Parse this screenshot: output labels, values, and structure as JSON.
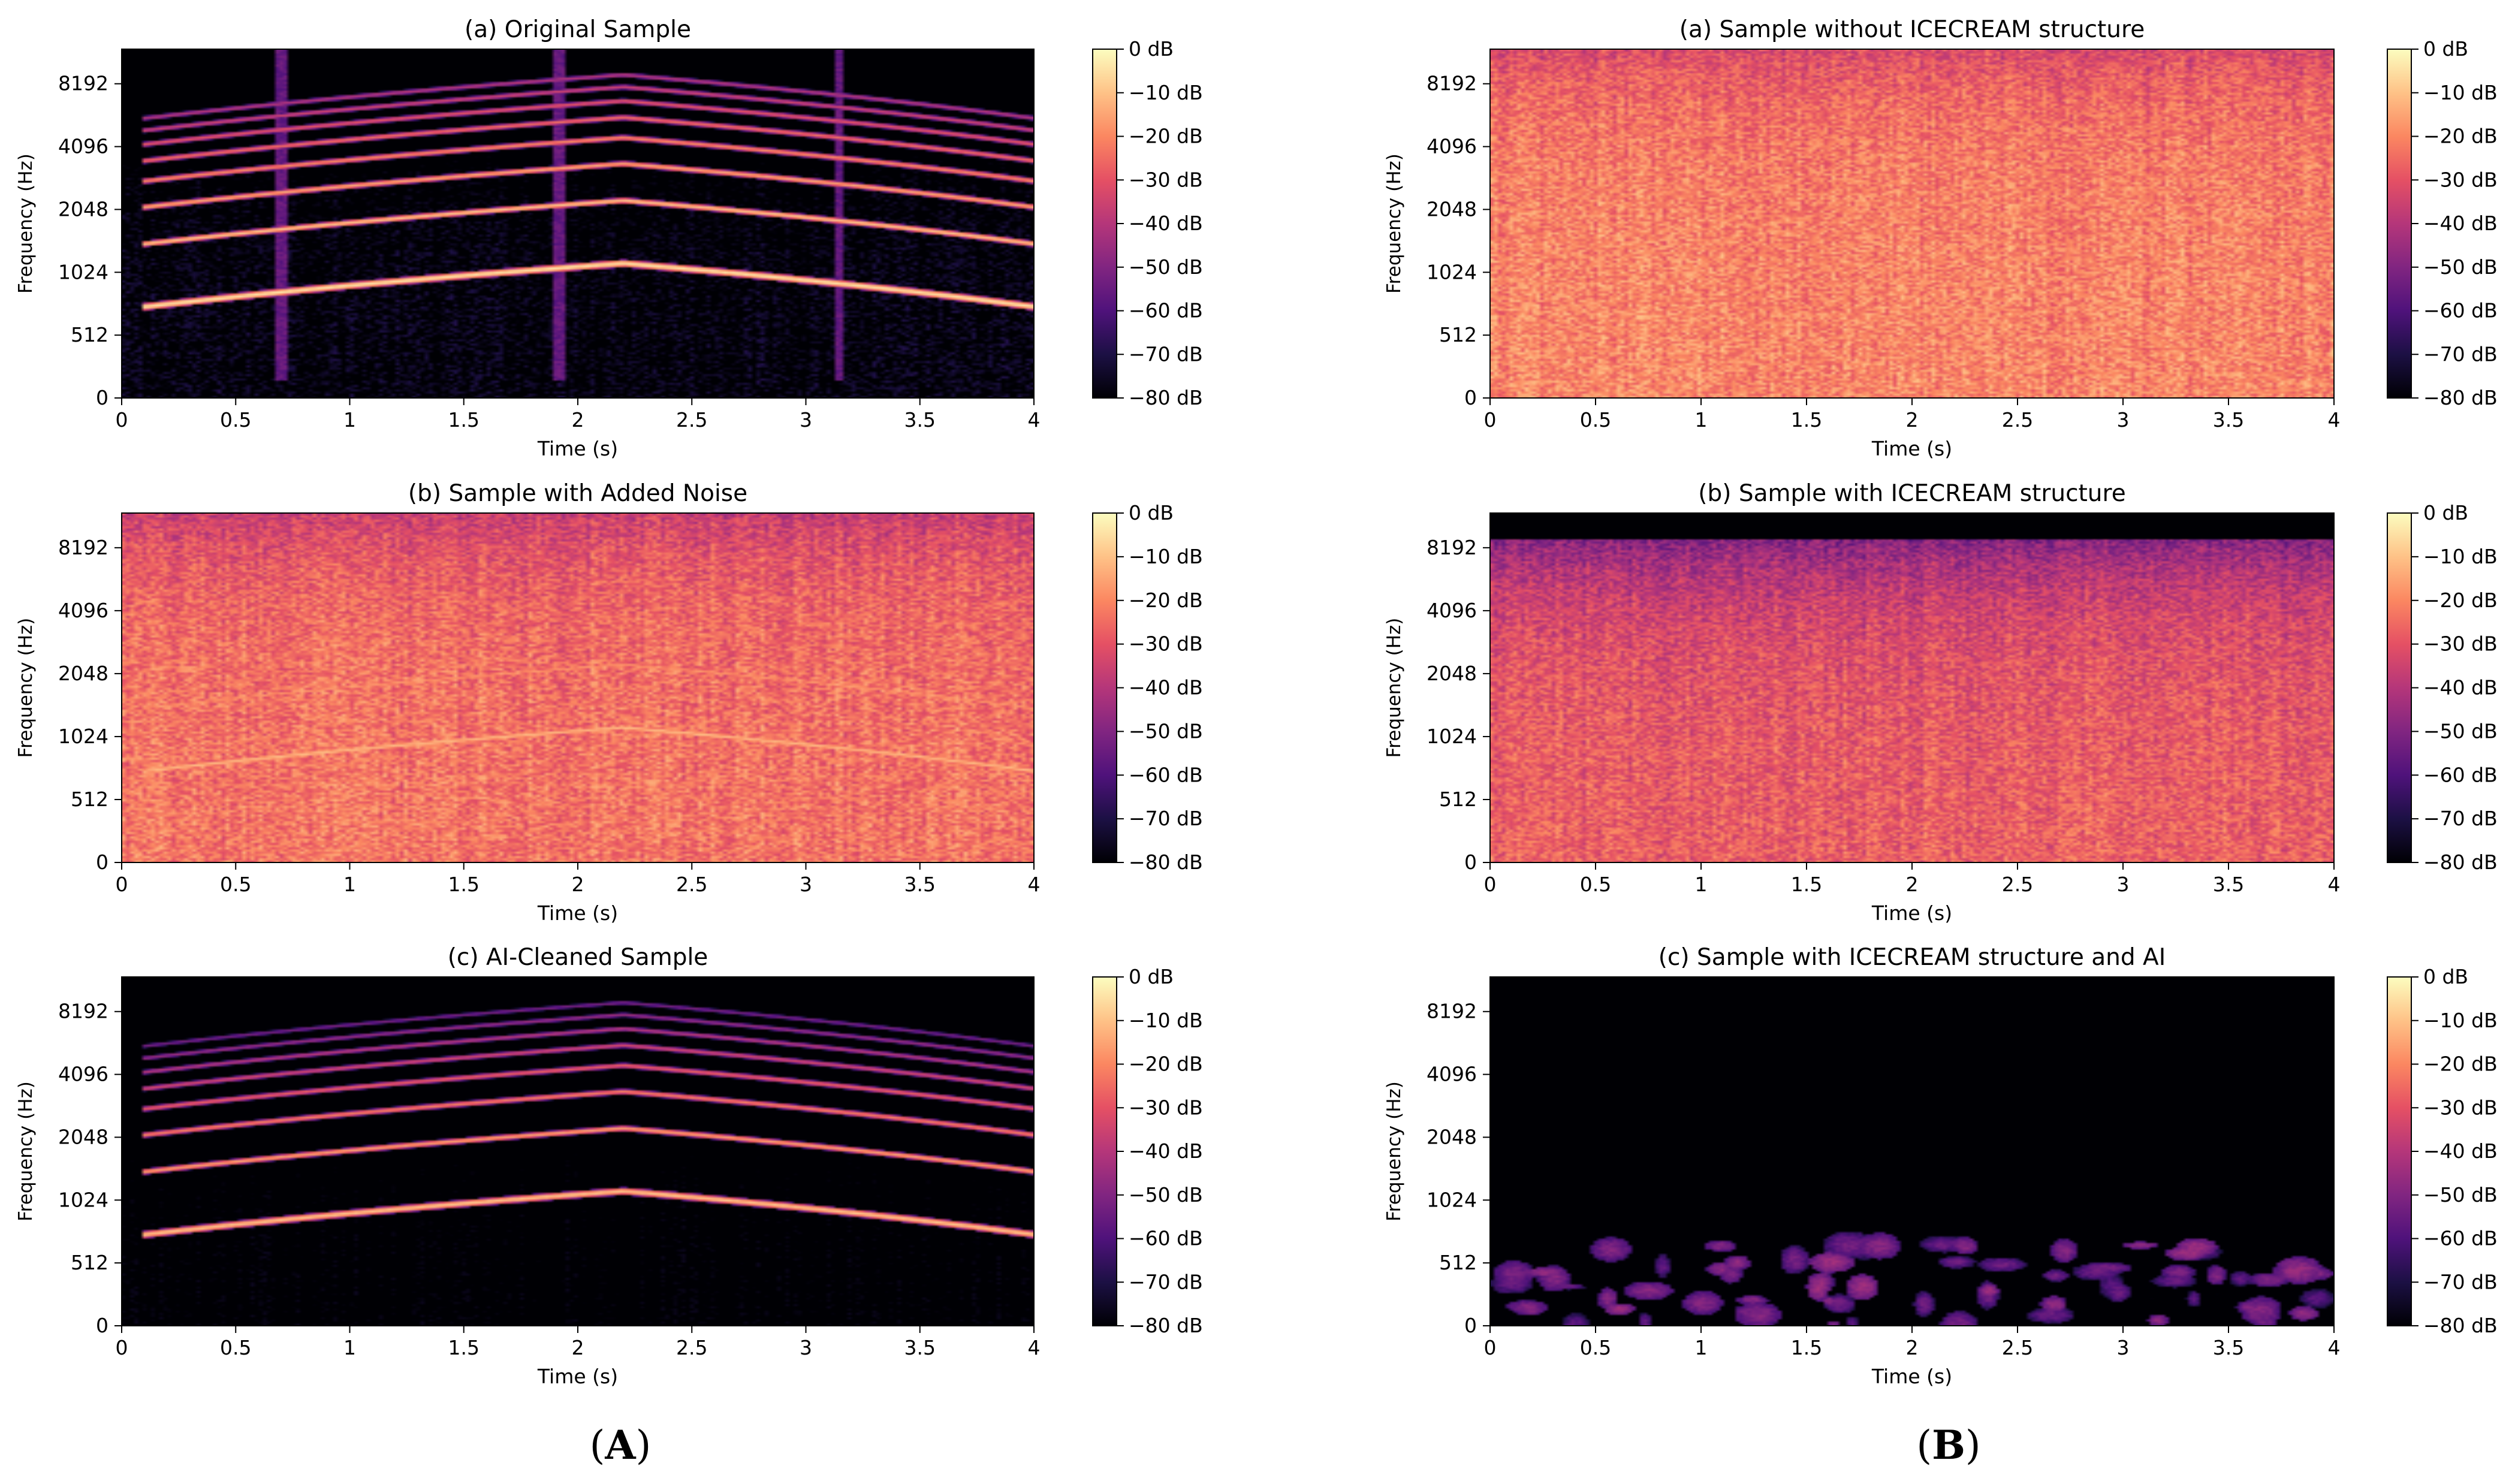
{
  "figure": {
    "panel_letters": [
      "A",
      "B"
    ]
  },
  "colors": {
    "colormap": [
      "#000004",
      "#1c1044",
      "#4f127b",
      "#812581",
      "#b5367a",
      "#e55064",
      "#fb8761",
      "#fec287",
      "#fcfdbf"
    ]
  },
  "chart_data": [
    {
      "type": "heatmap",
      "subtype": "spectrogram",
      "column": "A",
      "title": "(a) Original Sample",
      "xlabel": "Time (s)",
      "ylabel": "Frequency (Hz)",
      "xlim": [
        0,
        4
      ],
      "xticks": [
        "0",
        "0.5",
        "1",
        "1.5",
        "2",
        "2.5",
        "3",
        "3.5",
        "4"
      ],
      "yticks": [
        "0",
        "512",
        "1024",
        "2048",
        "4096",
        "8192"
      ],
      "colorbar": {
        "ticks": [
          "0 dB",
          "−10 dB",
          "−20 dB",
          "−30 dB",
          "−40 dB",
          "−50 dB",
          "−60 dB",
          "−70 dB",
          "−80 dB"
        ],
        "range_db": [
          -80,
          0
        ]
      },
      "signal": {
        "fundamental_hz": [
          [
            0.1,
            700
          ],
          [
            2.2,
            1130
          ],
          [
            4.0,
            700
          ]
        ],
        "harmonics": 8,
        "fundamental_level_db": -5,
        "harmonic_decay_db": 5,
        "noise_floor_db": -80,
        "noise_extent_hz": 4000,
        "noise_slope_db": 0,
        "noise_var_db": 9,
        "vertical_lines_s": [
          0.7,
          1.92,
          3.15
        ]
      }
    },
    {
      "type": "heatmap",
      "subtype": "spectrogram",
      "column": "A",
      "title": "(b) Sample with Added Noise",
      "xlabel": "Time (s)",
      "ylabel": "Frequency (Hz)",
      "xlim": [
        0,
        4
      ],
      "xticks": [
        "0",
        "0.5",
        "1",
        "1.5",
        "2",
        "2.5",
        "3",
        "3.5",
        "4"
      ],
      "yticks": [
        "0",
        "512",
        "1024",
        "2048",
        "4096",
        "8192"
      ],
      "colorbar": {
        "ticks": [
          "0 dB",
          "−10 dB",
          "−20 dB",
          "−30 dB",
          "−40 dB",
          "−50 dB",
          "−60 dB",
          "−70 dB",
          "−80 dB"
        ],
        "range_db": [
          -80,
          0
        ]
      },
      "signal": {
        "fundamental_hz": [
          [
            0.1,
            700
          ],
          [
            2.2,
            1130
          ],
          [
            4.0,
            700
          ]
        ],
        "harmonics": 7,
        "fundamental_level_db": -12,
        "harmonic_decay_db": 6,
        "noise_floor_db": -32,
        "noise_extent_hz": 16000,
        "noise_slope_db": 9,
        "noise_var_db": 8,
        "vertical_lines_s": []
      }
    },
    {
      "type": "heatmap",
      "subtype": "spectrogram",
      "column": "A",
      "title": "(c) AI-Cleaned Sample",
      "xlabel": "Time (s)",
      "ylabel": "Frequency (Hz)",
      "xlim": [
        0,
        4
      ],
      "xticks": [
        "0",
        "0.5",
        "1",
        "1.5",
        "2",
        "2.5",
        "3",
        "3.5",
        "4"
      ],
      "yticks": [
        "0",
        "512",
        "1024",
        "2048",
        "4096",
        "8192"
      ],
      "colorbar": {
        "ticks": [
          "0 dB",
          "−10 dB",
          "−20 dB",
          "−30 dB",
          "−40 dB",
          "−50 dB",
          "−60 dB",
          "−70 dB",
          "−80 dB"
        ],
        "range_db": [
          -80,
          0
        ]
      },
      "signal": {
        "fundamental_hz": [
          [
            0.1,
            700
          ],
          [
            2.2,
            1130
          ],
          [
            4.0,
            700
          ]
        ],
        "harmonics": 8,
        "fundamental_level_db": -10,
        "harmonic_decay_db": 6,
        "noise_floor_db": -84,
        "noise_extent_hz": 3000,
        "noise_slope_db": 0,
        "noise_var_db": 6,
        "vertical_lines_s": []
      }
    },
    {
      "type": "heatmap",
      "subtype": "spectrogram",
      "column": "B",
      "title": "(a) Sample without ICECREAM structure",
      "xlabel": "Time (s)",
      "ylabel": "Frequency (Hz)",
      "xlim": [
        0,
        4
      ],
      "xticks": [
        "0",
        "0.5",
        "1",
        "1.5",
        "2",
        "2.5",
        "3",
        "3.5",
        "4"
      ],
      "yticks": [
        "0",
        "512",
        "1024",
        "2048",
        "4096",
        "8192"
      ],
      "colorbar": {
        "ticks": [
          "0 dB",
          "−10 dB",
          "−20 dB",
          "−30 dB",
          "−40 dB",
          "−50 dB",
          "−60 dB",
          "−70 dB",
          "−80 dB"
        ],
        "range_db": [
          -80,
          0
        ]
      },
      "signal": {
        "fundamental_hz": [],
        "harmonics": 0,
        "noise_floor_db": -28,
        "noise_extent_hz": 16000,
        "noise_slope_db": 8,
        "noise_var_db": 8,
        "vertical_lines_s": []
      }
    },
    {
      "type": "heatmap",
      "subtype": "spectrogram",
      "column": "B",
      "title": "(b) Sample with ICECREAM structure",
      "xlabel": "Time (s)",
      "ylabel": "Frequency (Hz)",
      "xlim": [
        0,
        4
      ],
      "xticks": [
        "0",
        "0.5",
        "1",
        "1.5",
        "2",
        "2.5",
        "3",
        "3.5",
        "4"
      ],
      "yticks": [
        "0",
        "512",
        "1024",
        "2048",
        "4096",
        "8192"
      ],
      "colorbar": {
        "ticks": [
          "0 dB",
          "−10 dB",
          "−20 dB",
          "−30 dB",
          "−40 dB",
          "−50 dB",
          "−60 dB",
          "−70 dB",
          "−80 dB"
        ],
        "range_db": [
          -80,
          0
        ]
      },
      "signal": {
        "fundamental_hz": [],
        "harmonics": 0,
        "noise_floor_db": -38,
        "noise_extent_hz": 9000,
        "noise_slope_db": 11,
        "noise_var_db": 8,
        "vertical_lines_s": []
      }
    },
    {
      "type": "heatmap",
      "subtype": "spectrogram",
      "column": "B",
      "title": "(c) Sample with ICECREAM structure and AI",
      "xlabel": "Time (s)",
      "ylabel": "Frequency (Hz)",
      "xlim": [
        0,
        4
      ],
      "xticks": [
        "0",
        "0.5",
        "1",
        "1.5",
        "2",
        "2.5",
        "3",
        "3.5",
        "4"
      ],
      "yticks": [
        "0",
        "512",
        "1024",
        "2048",
        "4096",
        "8192"
      ],
      "colorbar": {
        "ticks": [
          "0 dB",
          "−10 dB",
          "−20 dB",
          "−30 dB",
          "−40 dB",
          "−50 dB",
          "−60 dB",
          "−70 dB",
          "−80 dB"
        ],
        "range_db": [
          -80,
          0
        ]
      },
      "signal": {
        "fundamental_hz": [],
        "harmonics": 0,
        "noise_floor_db": -90,
        "noise_extent_hz": 1600,
        "noise_slope_db": 0,
        "noise_var_db": 8,
        "patchy": true,
        "vertical_lines_s": []
      }
    }
  ]
}
